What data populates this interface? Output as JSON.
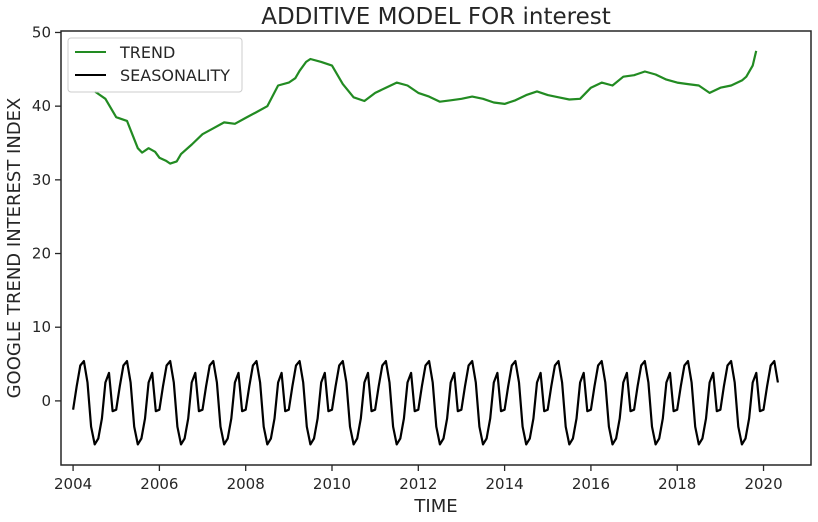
{
  "chart_data": {
    "type": "line",
    "title": "ADDITIVE MODEL FOR interest",
    "xlabel": "TIME",
    "ylabel": "GOOGLE TREND INTEREST INDEX",
    "xlim": [
      2003.72,
      2021.1
    ],
    "ylim": [
      -8.7,
      50.2
    ],
    "x_ticks": [
      2004,
      2006,
      2008,
      2010,
      2012,
      2014,
      2016,
      2018,
      2020
    ],
    "y_ticks": [
      0,
      10,
      20,
      30,
      40,
      50
    ],
    "grid": false,
    "legend": "top-left",
    "series": [
      {
        "name": "TREND",
        "color": "#228b22",
        "x": [
          2004.5,
          2004.75,
          2005.0,
          2005.25,
          2005.5,
          2005.6,
          2005.75,
          2005.9,
          2006.0,
          2006.15,
          2006.25,
          2006.4,
          2006.5,
          2006.75,
          2007.0,
          2007.25,
          2007.5,
          2007.75,
          2008.0,
          2008.25,
          2008.5,
          2008.75,
          2009.0,
          2009.15,
          2009.25,
          2009.4,
          2009.5,
          2009.75,
          2010.0,
          2010.25,
          2010.5,
          2010.75,
          2011.0,
          2011.25,
          2011.5,
          2011.75,
          2012.0,
          2012.25,
          2012.5,
          2012.75,
          2013.0,
          2013.25,
          2013.5,
          2013.75,
          2014.0,
          2014.25,
          2014.5,
          2014.75,
          2015.0,
          2015.25,
          2015.5,
          2015.75,
          2016.0,
          2016.25,
          2016.5,
          2016.75,
          2017.0,
          2017.25,
          2017.5,
          2017.75,
          2018.0,
          2018.25,
          2018.5,
          2018.75,
          2019.0,
          2019.25,
          2019.5,
          2019.6,
          2019.75,
          2019.83
        ],
        "values": [
          42,
          41,
          38.5,
          38,
          34.3,
          33.7,
          34.3,
          33.8,
          33.0,
          32.6,
          32.2,
          32.5,
          33.5,
          34.8,
          36.2,
          37.0,
          37.8,
          37.6,
          38.4,
          39.2,
          40.0,
          42.8,
          43.2,
          43.8,
          44.8,
          46.0,
          46.4,
          46.0,
          45.5,
          43.0,
          41.2,
          40.7,
          41.8,
          42.5,
          43.2,
          42.8,
          41.8,
          41.3,
          40.6,
          40.8,
          41.0,
          41.3,
          41.0,
          40.5,
          40.3,
          40.8,
          41.5,
          42.0,
          41.5,
          41.2,
          40.9,
          41.0,
          42.5,
          43.2,
          42.8,
          44.0,
          44.2,
          44.7,
          44.3,
          43.6,
          43.2,
          43.0,
          42.8,
          41.8,
          42.5,
          42.8,
          43.5,
          44.0,
          45.5,
          47.5
        ]
      },
      {
        "name": "SEASONALITY",
        "color": "#000000",
        "x0": 2004.0,
        "step": 0.08333,
        "count": 197,
        "pattern": [
          -1.2,
          2.0,
          4.8,
          5.4,
          2.5,
          -3.5,
          -5.9,
          -5.1,
          -2.4,
          2.5,
          3.8,
          -1.4
        ],
        "note": ""
      }
    ]
  }
}
